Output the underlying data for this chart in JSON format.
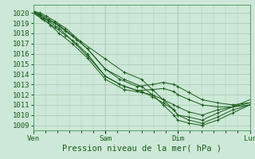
{
  "background_color": "#cde8d8",
  "grid_color": "#a8c8b0",
  "line_color": "#1a5c1a",
  "marker_color": "#1a5c1a",
  "xlabel": "Pression niveau de la mer( hPa )",
  "xlabel_fontsize": 7.5,
  "tick_fontsize": 6.5,
  "ylim": [
    1008.5,
    1020.8
  ],
  "yticks": [
    1009,
    1010,
    1011,
    1012,
    1013,
    1014,
    1015,
    1016,
    1017,
    1018,
    1019,
    1020
  ],
  "xtick_positions": [
    0,
    0.333,
    0.667,
    1.0
  ],
  "xtick_labels": [
    "Ven",
    "Sam",
    "Dim",
    "Lun"
  ],
  "xlim": [
    0,
    1.0
  ],
  "lines": [
    {
      "x": [
        0,
        0.05,
        0.1,
        0.15,
        0.2,
        0.25,
        0.333,
        0.4,
        0.48,
        0.55,
        0.6,
        0.65,
        0.667,
        0.72,
        0.78,
        0.85,
        0.92,
        1.0
      ],
      "y": [
        1020.1,
        1019.5,
        1019.0,
        1018.2,
        1017.4,
        1016.5,
        1014.5,
        1013.5,
        1012.8,
        1013.0,
        1013.2,
        1013.0,
        1012.8,
        1012.2,
        1011.5,
        1011.2,
        1011.0,
        1011.2
      ]
    },
    {
      "x": [
        0,
        0.05,
        0.1,
        0.15,
        0.2,
        0.25,
        0.333,
        0.4,
        0.48,
        0.55,
        0.6,
        0.65,
        0.667,
        0.72,
        0.78,
        0.85,
        0.92,
        1.0
      ],
      "y": [
        1020.0,
        1019.3,
        1018.6,
        1017.8,
        1017.0,
        1016.0,
        1013.8,
        1013.0,
        1012.4,
        1012.5,
        1012.6,
        1012.3,
        1012.0,
        1011.5,
        1011.0,
        1010.8,
        1010.8,
        1011.0
      ]
    },
    {
      "x": [
        0,
        0.04,
        0.08,
        0.12,
        0.18,
        0.25,
        0.333,
        0.42,
        0.5,
        0.55,
        0.6,
        0.65,
        0.667,
        0.72,
        0.78,
        0.85,
        0.92,
        1.0
      ],
      "y": [
        1020.0,
        1019.5,
        1018.8,
        1018.0,
        1017.0,
        1015.6,
        1013.5,
        1012.5,
        1012.2,
        1012.0,
        1011.5,
        1011.0,
        1010.8,
        1010.3,
        1010.0,
        1010.5,
        1010.8,
        1011.2
      ]
    },
    {
      "x": [
        0,
        0.03,
        0.07,
        0.12,
        0.18,
        0.25,
        0.333,
        0.42,
        0.5,
        0.55,
        0.6,
        0.65,
        0.667,
        0.72,
        0.78,
        0.85,
        0.92,
        1.0
      ],
      "y": [
        1020.1,
        1019.8,
        1019.2,
        1018.5,
        1017.3,
        1015.8,
        1013.8,
        1012.8,
        1012.3,
        1011.8,
        1011.2,
        1010.5,
        1010.0,
        1009.5,
        1009.2,
        1009.8,
        1010.5,
        1011.0
      ]
    },
    {
      "x": [
        0,
        0.03,
        0.07,
        0.12,
        0.18,
        0.25,
        0.333,
        0.42,
        0.5,
        0.55,
        0.6,
        0.65,
        0.667,
        0.72,
        0.78,
        0.85,
        0.92,
        1.0
      ],
      "y": [
        1020.1,
        1019.9,
        1019.4,
        1018.8,
        1017.8,
        1016.5,
        1014.5,
        1013.5,
        1012.8,
        1012.0,
        1011.0,
        1010.0,
        1009.5,
        1009.2,
        1009.0,
        1009.5,
        1010.2,
        1011.0
      ]
    },
    {
      "x": [
        0,
        0.03,
        0.06,
        0.1,
        0.15,
        0.22,
        0.333,
        0.42,
        0.5,
        0.55,
        0.6,
        0.65,
        0.667,
        0.72,
        0.78,
        0.85,
        0.92,
        1.0
      ],
      "y": [
        1020.2,
        1020.0,
        1019.7,
        1019.2,
        1018.5,
        1017.2,
        1015.5,
        1014.2,
        1013.5,
        1012.5,
        1011.5,
        1010.5,
        1010.0,
        1009.8,
        1009.5,
        1010.2,
        1010.8,
        1011.5
      ]
    }
  ]
}
